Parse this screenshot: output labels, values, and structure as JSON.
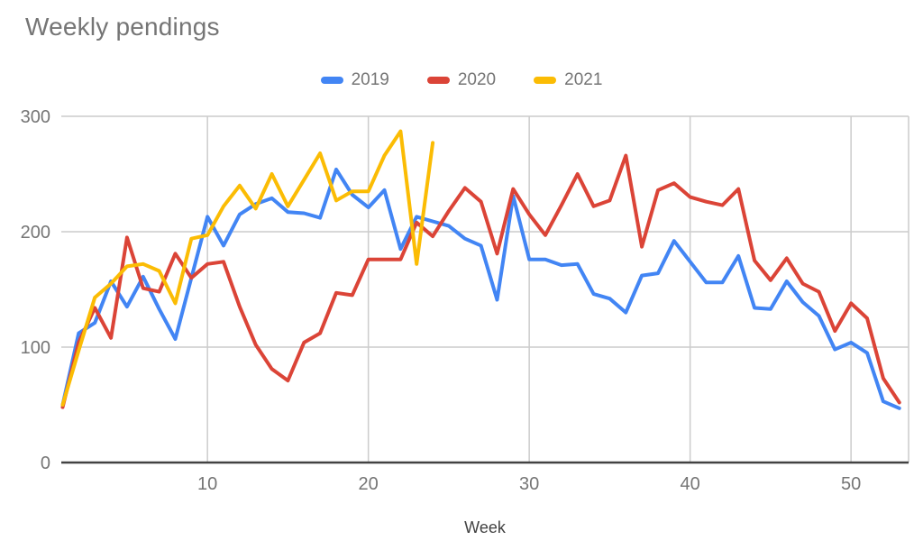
{
  "title": "Weekly pendings",
  "colors": {
    "title_text": "#757575",
    "tick_label": "#757575",
    "axis_title_text": "#424242",
    "gridline": "#cccccc",
    "axis_line": "#424242",
    "series_2019": "#4285f4",
    "series_2020": "#db4437",
    "series_2021": "#fbbc04"
  },
  "legend": {
    "items": [
      {
        "label": "2019",
        "color": "#4285f4"
      },
      {
        "label": "2020",
        "color": "#db4437"
      },
      {
        "label": "2021",
        "color": "#fbbc04"
      }
    ]
  },
  "chart_data": {
    "type": "line",
    "title": "Weekly pendings",
    "xlabel": "Week",
    "ylabel": "",
    "xlim": [
      1,
      53
    ],
    "ylim": [
      0,
      300
    ],
    "xticks": [
      10,
      20,
      30,
      40,
      50
    ],
    "yticks": [
      0,
      100,
      200,
      300
    ],
    "grid": true,
    "legend_position": "top",
    "x_unit": "week number, weekly points from week 1",
    "series": [
      {
        "name": "2019",
        "color": "#4285f4",
        "values": [
          50,
          112,
          121,
          157,
          135,
          161,
          133,
          107,
          160,
          213,
          188,
          215,
          224,
          229,
          217,
          216,
          212,
          254,
          232,
          221,
          236,
          185,
          213,
          209,
          205,
          194,
          188,
          141,
          231,
          176,
          176,
          171,
          172,
          146,
          142,
          130,
          162,
          164,
          192,
          174,
          156,
          156,
          179,
          134,
          133,
          157,
          139,
          127,
          98,
          104,
          95,
          53,
          47
        ]
      },
      {
        "name": "2020",
        "color": "#db4437",
        "values": [
          48,
          104,
          134,
          108,
          195,
          151,
          148,
          181,
          160,
          172,
          174,
          135,
          102,
          81,
          71,
          104,
          112,
          147,
          145,
          176,
          176,
          176,
          208,
          196,
          218,
          238,
          226,
          181,
          237,
          215,
          197,
          223,
          250,
          222,
          227,
          266,
          187,
          236,
          242,
          230,
          226,
          223,
          237,
          175,
          158,
          177,
          155,
          148,
          114,
          138,
          125,
          73,
          52
        ]
      },
      {
        "name": "2021",
        "color": "#fbbc04",
        "values": [
          50,
          97,
          143,
          155,
          170,
          172,
          166,
          138,
          194,
          197,
          222,
          240,
          220,
          250,
          222,
          245,
          268,
          227,
          235,
          235,
          266,
          287,
          172,
          277
        ]
      }
    ]
  }
}
